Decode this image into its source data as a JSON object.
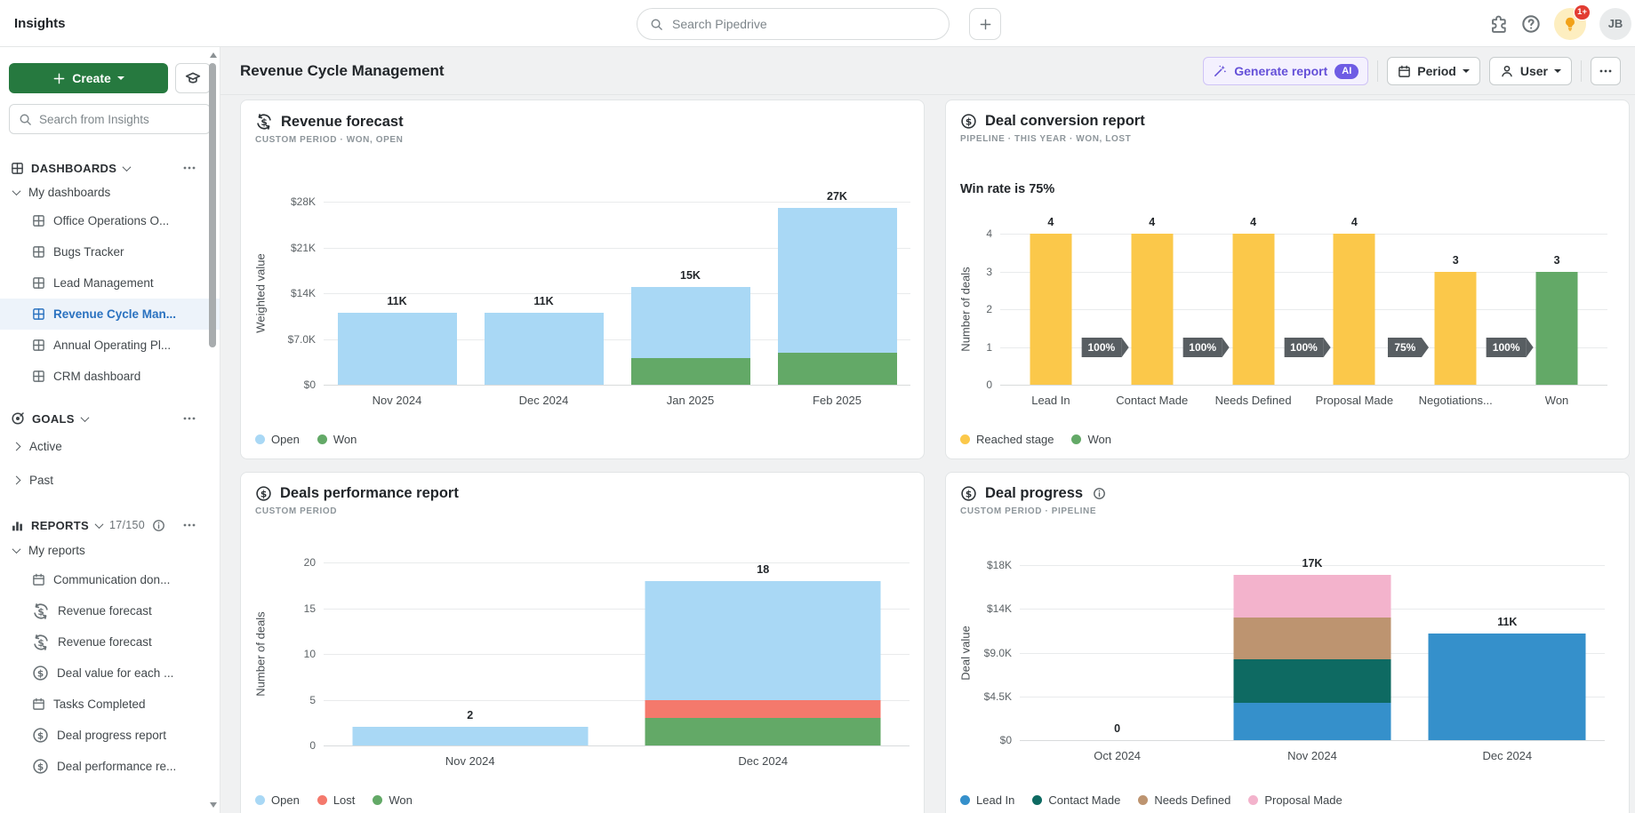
{
  "app": {
    "title": "Insights"
  },
  "top_nav": {
    "search_placeholder": "Search Pipedrive",
    "notification_badge": "1+",
    "avatar_initials": "JB"
  },
  "sidebar": {
    "create_button": "Create",
    "search_placeholder": "Search from Insights",
    "dashboards": {
      "label": "DASHBOARDS",
      "group_label": "My dashboards",
      "items": [
        {
          "label": "Office Operations O...",
          "active": false
        },
        {
          "label": "Bugs Tracker",
          "active": false
        },
        {
          "label": "Lead Management",
          "active": false
        },
        {
          "label": "Revenue Cycle Man...",
          "active": true
        },
        {
          "label": "Annual Operating Pl...",
          "active": false
        },
        {
          "label": "CRM dashboard",
          "active": false
        }
      ]
    },
    "goals": {
      "label": "GOALS",
      "items": [
        {
          "label": "Active"
        },
        {
          "label": "Past"
        }
      ]
    },
    "reports": {
      "label": "REPORTS",
      "count": "17/150",
      "group_label": "My reports",
      "items": [
        {
          "label": "Communication don...",
          "icon": "calendar"
        },
        {
          "label": "Revenue forecast",
          "icon": "forecast"
        },
        {
          "label": "Revenue forecast",
          "icon": "forecast"
        },
        {
          "label": "Deal value for each ...",
          "icon": "money"
        },
        {
          "label": "Tasks Completed",
          "icon": "calendar"
        },
        {
          "label": "Deal progress report",
          "icon": "money"
        },
        {
          "label": "Deal performance re...",
          "icon": "money"
        }
      ]
    }
  },
  "header": {
    "title": "Revenue Cycle Management",
    "generate_report": "Generate report",
    "ai_badge": "AI",
    "period": "Period",
    "user": "User"
  },
  "colors": {
    "accent_green": "#26793f",
    "accent_purple": "#6450d8",
    "active_blue": "#2a72c0",
    "badge_red": "#e23c32",
    "open_blue": "#a9d8f5",
    "won_green": "#63a967",
    "lost_red": "#f4796c",
    "reached_yellow": "#fbc84a",
    "lead_in_blue": "#3590cb",
    "contact_made_teal": "#0e6a62",
    "needs_defined_tan": "#bd9470",
    "proposal_made_pink": "#f3b3cc"
  },
  "chart_data": [
    {
      "id": "revenue-forecast",
      "type": "bar",
      "stacked": true,
      "icon": "forecast",
      "title": "Revenue forecast",
      "subtitle": "CUSTOM PERIOD  ·  WON, OPEN",
      "ylabel": "Weighted value",
      "ymax": 28000,
      "grid": true,
      "legend_position": "bottom-left",
      "yticks": [
        {
          "v": 0,
          "label": "$0"
        },
        {
          "v": 7000,
          "label": "$7.0K"
        },
        {
          "v": 14000,
          "label": "$14K"
        },
        {
          "v": 21000,
          "label": "$21K"
        },
        {
          "v": 28000,
          "label": "$28K"
        }
      ],
      "categories": [
        "Nov 2024",
        "Dec 2024",
        "Jan 2025",
        "Feb 2025"
      ],
      "series": [
        {
          "name": "Won",
          "color": "#63a967",
          "values": [
            0,
            0,
            4100,
            4900
          ]
        },
        {
          "name": "Open",
          "color": "#a9d8f5",
          "values": [
            11000,
            11000,
            10900,
            22100
          ]
        }
      ],
      "totals": [
        "11K",
        "11K",
        "15K",
        "27K"
      ],
      "legend": [
        {
          "label": "Open",
          "color": "#a9d8f5"
        },
        {
          "label": "Won",
          "color": "#63a967"
        }
      ]
    },
    {
      "id": "deal-conversion-report",
      "type": "bar",
      "stacked": true,
      "icon": "money",
      "title": "Deal conversion report",
      "subtitle": "PIPELINE  ·  THIS YEAR  ·  WON, LOST",
      "note": "Win rate is 75%",
      "ylabel": "Number of deals",
      "ymax": 4,
      "grid": true,
      "legend_position": "bottom-left",
      "yticks": [
        {
          "v": 0,
          "label": "0"
        },
        {
          "v": 1,
          "label": "1"
        },
        {
          "v": 2,
          "label": "2"
        },
        {
          "v": 3,
          "label": "3"
        },
        {
          "v": 4,
          "label": "4"
        }
      ],
      "categories": [
        "Lead In",
        "Contact Made",
        "Needs Defined",
        "Proposal Made",
        "Negotiations...",
        "Won"
      ],
      "series": [
        {
          "name": "Reached stage",
          "color": "#fbc84a",
          "values": [
            4,
            4,
            4,
            4,
            3,
            0
          ]
        },
        {
          "name": "Won",
          "color": "#63a967",
          "values": [
            0,
            0,
            0,
            0,
            0,
            3
          ]
        }
      ],
      "totals": [
        "4",
        "4",
        "4",
        "4",
        "3",
        "3"
      ],
      "arrows": [
        "100%",
        "100%",
        "100%",
        "75%",
        "100%"
      ],
      "legend": [
        {
          "label": "Reached stage",
          "color": "#fbc84a"
        },
        {
          "label": "Won",
          "color": "#63a967"
        }
      ]
    },
    {
      "id": "deals-performance-report",
      "type": "bar",
      "stacked": true,
      "icon": "money",
      "title": "Deals performance report",
      "subtitle": "CUSTOM PERIOD",
      "ylabel": "Number of deals",
      "ymax": 20,
      "grid": true,
      "legend_position": "bottom-left",
      "yticks": [
        {
          "v": 0,
          "label": "0"
        },
        {
          "v": 5,
          "label": "5"
        },
        {
          "v": 10,
          "label": "10"
        },
        {
          "v": 15,
          "label": "15"
        },
        {
          "v": 20,
          "label": "20"
        }
      ],
      "categories": [
        "Nov 2024",
        "Dec 2024"
      ],
      "series": [
        {
          "name": "Won",
          "color": "#63a967",
          "values": [
            0,
            3
          ]
        },
        {
          "name": "Lost",
          "color": "#f4796c",
          "values": [
            0,
            2
          ]
        },
        {
          "name": "Open",
          "color": "#a9d8f5",
          "values": [
            2,
            13
          ]
        }
      ],
      "totals": [
        "2",
        "18"
      ],
      "legend": [
        {
          "label": "Open",
          "color": "#a9d8f5"
        },
        {
          "label": "Lost",
          "color": "#f4796c"
        },
        {
          "label": "Won",
          "color": "#63a967"
        }
      ]
    },
    {
      "id": "deal-progress",
      "type": "bar",
      "stacked": true,
      "icon": "money",
      "title": "Deal progress",
      "subtitle": "CUSTOM PERIOD  ·  PIPELINE",
      "ylabel": "Deal value",
      "ymax": 18000,
      "grid": true,
      "legend_position": "bottom-left",
      "yticks": [
        {
          "v": 0,
          "label": "$0"
        },
        {
          "v": 4500,
          "label": "$4.5K"
        },
        {
          "v": 9000,
          "label": "$9.0K"
        },
        {
          "v": 13500,
          "label": "$14K"
        },
        {
          "v": 18000,
          "label": "$18K"
        }
      ],
      "categories": [
        "Oct 2024",
        "Nov 2024",
        "Dec 2024"
      ],
      "series": [
        {
          "name": "Lead In",
          "color": "#3590cb",
          "values": [
            0,
            3800,
            11000
          ]
        },
        {
          "name": "Contact Made",
          "color": "#0e6a62",
          "values": [
            0,
            4500,
            0
          ]
        },
        {
          "name": "Needs Defined",
          "color": "#bd9470",
          "values": [
            0,
            4300,
            0
          ]
        },
        {
          "name": "Proposal Made",
          "color": "#f3b3cc",
          "values": [
            0,
            4400,
            0
          ]
        }
      ],
      "totals": [
        "0",
        "17K",
        "11K"
      ],
      "legend": [
        {
          "label": "Lead In",
          "color": "#3590cb"
        },
        {
          "label": "Contact Made",
          "color": "#0e6a62"
        },
        {
          "label": "Needs Defined",
          "color": "#bd9470"
        },
        {
          "label": "Proposal Made",
          "color": "#f3b3cc"
        }
      ]
    }
  ]
}
